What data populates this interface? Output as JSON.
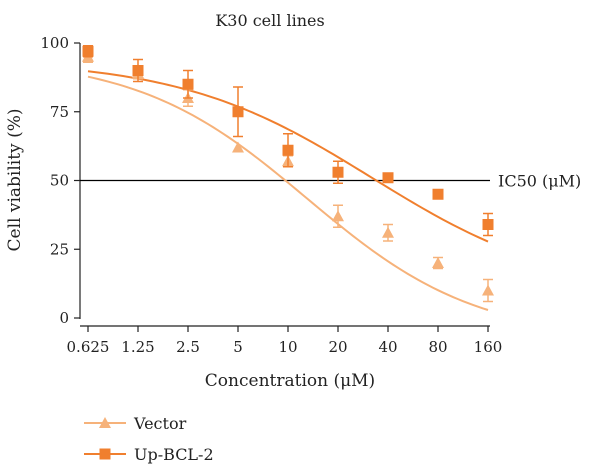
{
  "chart_data": {
    "type": "scatter",
    "title": "K30 cell lines",
    "xlabel": "Concentration (μM)",
    "ylabel": "Cell viability (%)",
    "x_scale": "log2",
    "x_ticks": [
      {
        "value": 0.625,
        "label": "0.625"
      },
      {
        "value": 1.25,
        "label": "1.25"
      },
      {
        "value": 2.5,
        "label": "2.5"
      },
      {
        "value": 5,
        "label": "5"
      },
      {
        "value": 10,
        "label": "10"
      },
      {
        "value": 20,
        "label": "20"
      },
      {
        "value": 40,
        "label": "40"
      },
      {
        "value": 80,
        "label": "80"
      },
      {
        "value": 160,
        "label": "160"
      }
    ],
    "ylim": [
      0,
      100
    ],
    "y_ticks": [
      0,
      25,
      50,
      75,
      100
    ],
    "reference_line": {
      "y": 50,
      "label": "IC50 (μM)",
      "color": "#000000"
    },
    "legend_placement": "bottom-left",
    "series": [
      {
        "name": "Vector",
        "marker": "triangle",
        "color": "#f6b27a",
        "x": [
          0.625,
          1.25,
          2.5,
          5,
          10,
          20,
          40,
          80,
          160
        ],
        "y": [
          95,
          89,
          80,
          62,
          57,
          37,
          31,
          20,
          10
        ],
        "error": [
          2,
          2,
          3,
          0,
          2,
          4,
          3,
          2,
          4
        ],
        "fit": {
          "top": 95,
          "bottom": -8,
          "ic50": 13,
          "hill": 0.85
        }
      },
      {
        "name": "Up-BCL-2",
        "marker": "square",
        "color": "#f07f2e",
        "x": [
          0.625,
          1.25,
          2.5,
          5,
          10,
          20,
          40,
          80,
          160
        ],
        "y": [
          97,
          90,
          85,
          75,
          61,
          53,
          51,
          45,
          34
        ],
        "error": [
          2,
          4,
          5,
          9,
          6,
          4,
          1,
          0,
          4
        ],
        "fit": {
          "top": 94,
          "bottom": 8,
          "ic50": 32,
          "hill": 0.75
        }
      }
    ]
  }
}
